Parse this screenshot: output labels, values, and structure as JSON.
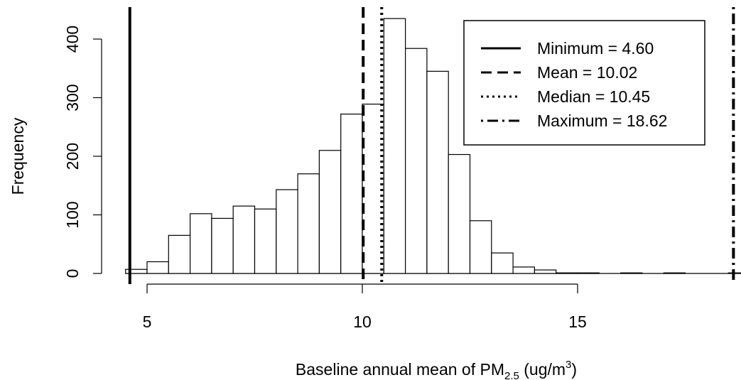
{
  "chart_data": {
    "type": "bar",
    "title": "",
    "xlabel": {
      "main": "Baseline annual mean of PM",
      "sub": "2.5",
      "unit_pre": " (ug/m",
      "sup": "3",
      "unit_post": ")"
    },
    "ylabel": "Frequency",
    "xlim": [
      4.5,
      19
    ],
    "ylim": [
      0,
      440
    ],
    "x_ticks": [
      5,
      10,
      15
    ],
    "y_ticks": [
      0,
      100,
      200,
      300,
      400
    ],
    "bin_width": 0.5,
    "bins": [
      {
        "start": 4.5,
        "end": 5.0,
        "count": 7
      },
      {
        "start": 5.0,
        "end": 5.5,
        "count": 20
      },
      {
        "start": 5.5,
        "end": 6.0,
        "count": 65
      },
      {
        "start": 6.0,
        "end": 6.5,
        "count": 102
      },
      {
        "start": 6.5,
        "end": 7.0,
        "count": 94
      },
      {
        "start": 7.0,
        "end": 7.5,
        "count": 115
      },
      {
        "start": 7.5,
        "end": 8.0,
        "count": 110
      },
      {
        "start": 8.0,
        "end": 8.5,
        "count": 143
      },
      {
        "start": 8.5,
        "end": 9.0,
        "count": 170
      },
      {
        "start": 9.0,
        "end": 9.5,
        "count": 210
      },
      {
        "start": 9.5,
        "end": 10.0,
        "count": 272
      },
      {
        "start": 10.0,
        "end": 10.5,
        "count": 289
      },
      {
        "start": 10.5,
        "end": 11.0,
        "count": 435
      },
      {
        "start": 11.0,
        "end": 11.5,
        "count": 384
      },
      {
        "start": 11.5,
        "end": 12.0,
        "count": 345
      },
      {
        "start": 12.0,
        "end": 12.5,
        "count": 203
      },
      {
        "start": 12.5,
        "end": 13.0,
        "count": 90
      },
      {
        "start": 13.0,
        "end": 13.5,
        "count": 35
      },
      {
        "start": 13.5,
        "end": 14.0,
        "count": 11
      },
      {
        "start": 14.0,
        "end": 14.5,
        "count": 6
      },
      {
        "start": 14.5,
        "end": 15.0,
        "count": 1
      },
      {
        "start": 15.0,
        "end": 15.5,
        "count": 1
      },
      {
        "start": 15.5,
        "end": 16.0,
        "count": 0
      },
      {
        "start": 16.0,
        "end": 16.5,
        "count": 1
      },
      {
        "start": 16.5,
        "end": 17.0,
        "count": 0
      },
      {
        "start": 17.0,
        "end": 17.5,
        "count": 1
      },
      {
        "start": 17.5,
        "end": 18.0,
        "count": 0
      },
      {
        "start": 18.0,
        "end": 18.5,
        "count": 0
      },
      {
        "start": 18.5,
        "end": 19.0,
        "count": 1
      }
    ],
    "reference_lines": [
      {
        "label": "Minimum = 4.60",
        "value": 4.6,
        "style": "solid"
      },
      {
        "label": "Mean = 10.02",
        "value": 10.02,
        "style": "dashed"
      },
      {
        "label": "Median = 10.45",
        "value": 10.45,
        "style": "dotted"
      },
      {
        "label": "Maximum = 18.62",
        "value": 18.62,
        "style": "dotdash"
      }
    ],
    "legend": {
      "position": "top-right",
      "box": true
    },
    "grid": false,
    "colors": {
      "bar_fill": "#ffffff",
      "bar_stroke": "#000000",
      "lines": "#000000"
    }
  }
}
